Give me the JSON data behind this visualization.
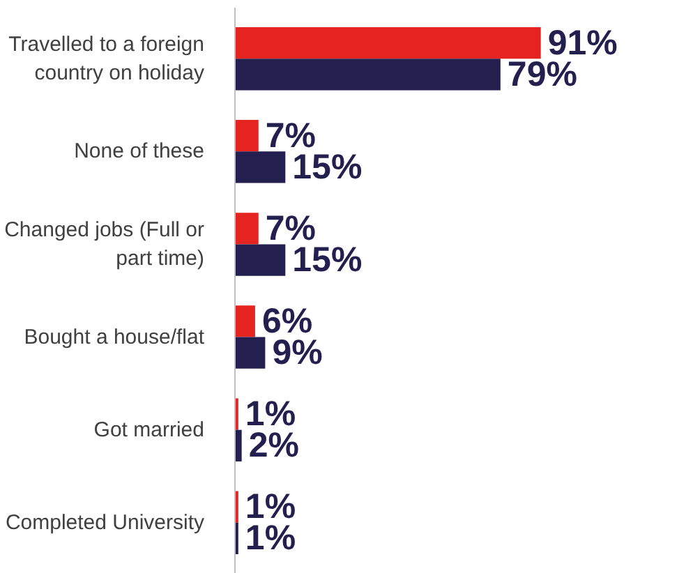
{
  "chart_data": {
    "type": "bar",
    "orientation": "horizontal",
    "categories": [
      "Travelled to a foreign country on holiday",
      "None of these",
      "Changed jobs (Full or part time)",
      "Bought a house/flat",
      "Got married",
      "Completed University"
    ],
    "series": [
      {
        "color": "#e52421",
        "values": [
          91,
          7,
          7,
          6,
          1,
          1
        ],
        "value_labels": [
          "91%",
          "7%",
          "7%",
          "6%",
          "1%",
          "1%"
        ]
      },
      {
        "color": "#231f4f",
        "values": [
          79,
          15,
          15,
          9,
          2,
          1
        ],
        "value_labels": [
          "79%",
          "15%",
          "15%",
          "9%",
          "2%",
          "1%"
        ]
      }
    ],
    "tick_labels": "y",
    "grid": false
  }
}
